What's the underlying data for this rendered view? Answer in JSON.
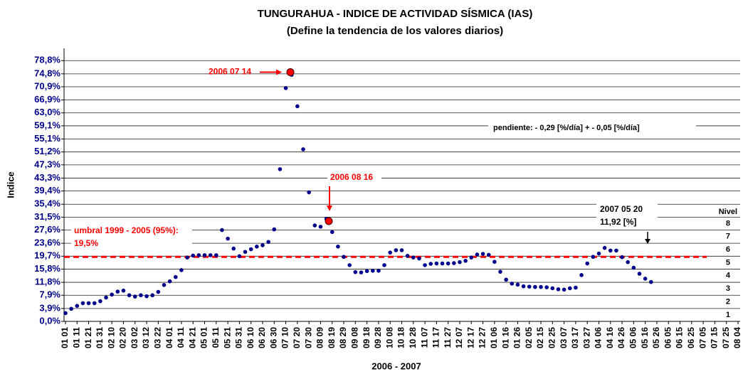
{
  "chart_data": {
    "type": "scatter",
    "title": "TUNGURAHUA - INDICE DE ACTIVIDAD SÍSMICA (IAS)",
    "subtitle": "(Define la tendencia de los valores diarios)",
    "y_label": "Indice",
    "x_label": "2006 - 2007",
    "color": "#00008b",
    "grid": true,
    "ylim": [
      0,
      82.5
    ],
    "yticks": [
      {
        "value": 0,
        "label": "0,0%"
      },
      {
        "value": 3.9,
        "label": "3,9%"
      },
      {
        "value": 7.9,
        "label": "7,9%"
      },
      {
        "value": 11.8,
        "label": "11,8%"
      },
      {
        "value": 15.8,
        "label": "15,8%"
      },
      {
        "value": 19.7,
        "label": "19,7%"
      },
      {
        "value": 23.6,
        "label": "23,6%"
      },
      {
        "value": 27.6,
        "label": "27,6%"
      },
      {
        "value": 31.5,
        "label": "31,5%"
      },
      {
        "value": 35.4,
        "label": "35,4%"
      },
      {
        "value": 39.4,
        "label": "39,4%"
      },
      {
        "value": 43.3,
        "label": "43,3%"
      },
      {
        "value": 47.3,
        "label": "47,3%"
      },
      {
        "value": 51.2,
        "label": "51,2%"
      },
      {
        "value": 55.1,
        "label": "55,1%"
      },
      {
        "value": 59.1,
        "label": "59,1%"
      },
      {
        "value": 63.0,
        "label": "63,0%"
      },
      {
        "value": 66.9,
        "label": "66,9%"
      },
      {
        "value": 70.9,
        "label": "70,9%"
      },
      {
        "value": 74.8,
        "label": "74,8%"
      },
      {
        "value": 78.8,
        "label": "78,8%"
      }
    ],
    "categories": [
      "01 01",
      null,
      "01 11",
      null,
      "01 21",
      null,
      "01 31",
      null,
      "02 10",
      null,
      "02 20",
      null,
      "03 02",
      null,
      "03 12",
      null,
      "03 22",
      null,
      "04 01",
      null,
      "04 11",
      null,
      "04 21",
      null,
      "05 01",
      null,
      "05 11",
      null,
      "05 21",
      null,
      "05 31",
      null,
      "06 10",
      null,
      "06 20",
      null,
      "06 30",
      null,
      "07 10",
      null,
      "07 20",
      null,
      "07 30",
      null,
      "08 09",
      null,
      "08 19",
      null,
      "08 29",
      null,
      "09 08",
      null,
      "09 18",
      null,
      "09 28",
      null,
      "10 08",
      null,
      "10 18",
      null,
      "10 28",
      null,
      "11 07",
      null,
      "11 17",
      null,
      "11 27",
      null,
      "12 07",
      null,
      "12 17",
      null,
      "12 27",
      null,
      "01 06",
      null,
      "01 16",
      null,
      "01 26",
      null,
      "02 05",
      null,
      "02 15",
      null,
      "02 25",
      null,
      "03 07",
      null,
      "03 17",
      null,
      "03 27",
      null,
      "04 06",
      null,
      "04 16",
      null,
      "04 26",
      null,
      "05 06",
      null,
      "05 16",
      null,
      "05 26",
      null,
      "06 05",
      null,
      "06 15",
      null,
      "06 25",
      null,
      "07 05",
      null,
      "07 15",
      null,
      "07 25",
      null,
      "08 04"
    ],
    "values": [
      2.5,
      3.8,
      4.7,
      5.5,
      5.5,
      5.5,
      6.1,
      7.2,
      8.1,
      9,
      9.3,
      7.9,
      7.5,
      7.9,
      7.6,
      7.9,
      8.9,
      11,
      12.1,
      13.4,
      15.5,
      19.3,
      19.9,
      20,
      20,
      20,
      20,
      27.6,
      25,
      22,
      19.7,
      21,
      21.8,
      22.6,
      23,
      24,
      27.8,
      46,
      70.5,
      74.5,
      65,
      52,
      39,
      29,
      28.6,
      31,
      27,
      22.6,
      19.5,
      17,
      14.9,
      14.8,
      15.2,
      15.3,
      15.3,
      17,
      20.8,
      21.5,
      21.5,
      19.8,
      19.3,
      19,
      17,
      17.4,
      17.5,
      17.5,
      17.5,
      17.6,
      17.9,
      18.3,
      19.3,
      20.2,
      20.4,
      20.1,
      18,
      15,
      12.6,
      11.4,
      11.1,
      10.6,
      10.5,
      10.4,
      10.4,
      10.3,
      10,
      9.7,
      9.6,
      10,
      10.2,
      14,
      17.5,
      19.5,
      20.5,
      22.2,
      21.4,
      21.4,
      19.4,
      17.9,
      16.2,
      14.4,
      12.9,
      11.9,
      null,
      null,
      null,
      null,
      null,
      null,
      null,
      null,
      null,
      null,
      null,
      null,
      null,
      null,
      null
    ],
    "threshold": {
      "label": "umbral 1999 - 2005 (95%):",
      "value_label": "19,5%",
      "value": 19.5,
      "color": "#ff0000"
    },
    "highlights": [
      {
        "text": "2006 07 14",
        "value": 75.3,
        "color": "#ff0000"
      },
      {
        "text": "2006 08 16",
        "value": 30.3,
        "color": "#ff0000"
      }
    ],
    "slope_text": "pendiente: - 0,29 [%/día] + - 0,05 [%/día]",
    "last_note": {
      "text": "2007 05 20",
      "subtext": "11,92 [%]"
    },
    "levels": {
      "title": "Nivel",
      "labels": [
        1,
        2,
        3,
        4,
        5,
        6,
        7,
        8
      ]
    }
  }
}
